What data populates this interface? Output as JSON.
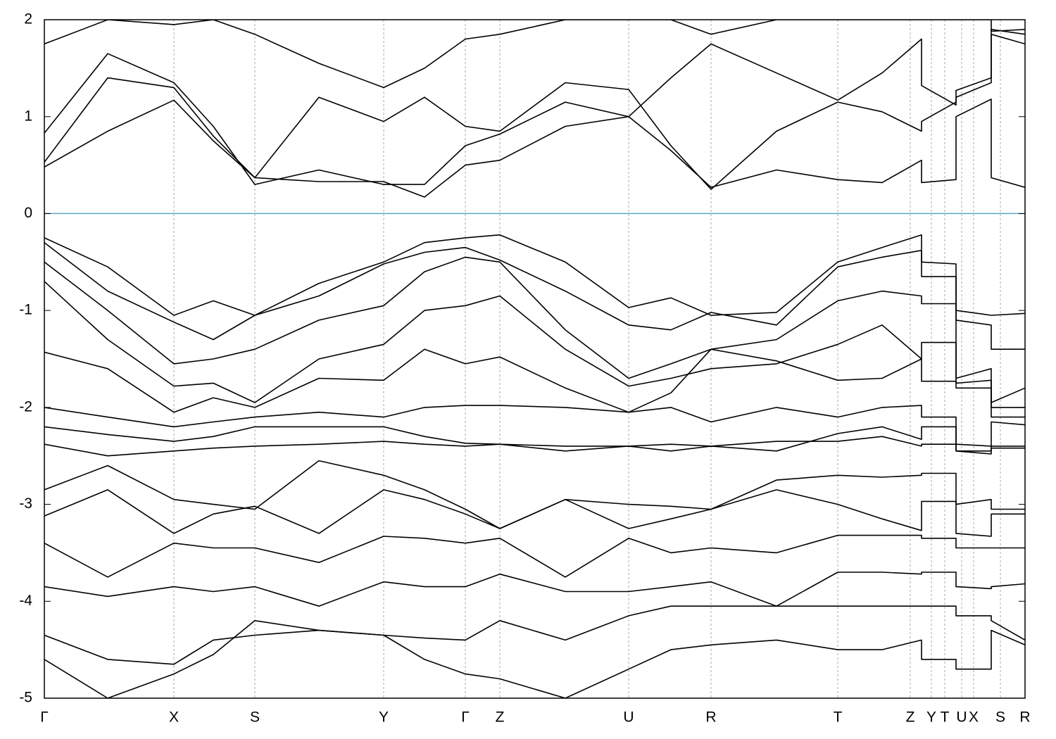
{
  "chart_data": {
    "type": "line",
    "ylim": [
      -5,
      2
    ],
    "yticks": [
      2,
      1,
      0,
      -1,
      -2,
      -3,
      -4,
      -5
    ],
    "xlim": [
      0,
      13.93
    ],
    "xticks": [
      {
        "value": 0,
        "label": "Γ"
      },
      {
        "value": 1.84,
        "label": "X"
      },
      {
        "value": 2.99,
        "label": "S"
      },
      {
        "value": 4.82,
        "label": "Y"
      },
      {
        "value": 5.98,
        "label": "Γ"
      },
      {
        "value": 6.47,
        "label": "Z"
      },
      {
        "value": 8.3,
        "label": "U"
      },
      {
        "value": 9.47,
        "label": "R"
      },
      {
        "value": 11.27,
        "label": "T"
      },
      {
        "value": 12.3,
        "label": "Z"
      },
      {
        "value": 12.6,
        "label": "Y"
      },
      {
        "value": 12.79,
        "label": "T"
      },
      {
        "value": 13.03,
        "label": "U"
      },
      {
        "value": 13.2,
        "label": "X"
      },
      {
        "value": 13.58,
        "label": "S"
      },
      {
        "value": 13.93,
        "label": "R"
      }
    ],
    "grid": true,
    "hline": {
      "value": 0,
      "color": "#5aa9c4"
    },
    "x": [
      0,
      0.9,
      1.84,
      2.4,
      2.99,
      3.9,
      4.82,
      5.4,
      5.98,
      6.47,
      7.4,
      8.3,
      8.9,
      9.47,
      10.4,
      11.27,
      11.9,
      12.46,
      12.46,
      12.95,
      12.95,
      13.45,
      13.45,
      13.93
    ],
    "series": [
      {
        "color": "#000000",
        "values": [
          0.48,
          0.85,
          1.17,
          0.75,
          0.37,
          0.33,
          0.33,
          0.17,
          0.5,
          0.55,
          0.9,
          1.0,
          0.65,
          0.27,
          0.45,
          0.35,
          0.32,
          0.55,
          0.32,
          0.35,
          1.0,
          1.18,
          0.37,
          0.27
        ]
      },
      {
        "color": "#000000",
        "values": [
          0.53,
          1.4,
          1.3,
          0.8,
          0.37,
          1.2,
          0.95,
          1.2,
          0.9,
          0.85,
          1.35,
          1.28,
          0.7,
          0.25,
          0.85,
          1.15,
          1.05,
          0.85,
          0.95,
          1.15,
          1.27,
          1.4,
          1.85,
          1.75
        ]
      },
      {
        "color": "#000000",
        "values": [
          0.83,
          1.65,
          1.35,
          0.9,
          0.3,
          0.45,
          0.3,
          0.3,
          0.7,
          0.82,
          1.15,
          1.0,
          1.4,
          1.75,
          1.45,
          1.17,
          1.45,
          1.8,
          1.32,
          1.12,
          1.2,
          1.35,
          1.9,
          1.85
        ]
      },
      {
        "color": "#000000",
        "values": [
          1.75,
          2.0,
          1.95,
          2.0,
          1.85,
          1.55,
          1.3,
          1.5,
          1.8,
          1.85,
          2.0,
          2.0,
          2.0,
          1.85,
          2.0,
          2.0,
          2.0,
          2.0,
          2.0,
          2.0,
          2.0,
          2.0,
          1.88,
          1.9
        ]
      },
      {
        "color": "#000000",
        "values": [
          -0.25,
          -0.55,
          -1.05,
          -0.9,
          -1.05,
          -0.72,
          -0.5,
          -0.3,
          -0.25,
          -0.22,
          -0.5,
          -0.97,
          -0.87,
          -1.05,
          -1.02,
          -0.5,
          -0.35,
          -0.22,
          -0.5,
          -0.52,
          -1.0,
          -1.05,
          -1.05,
          -1.03
        ]
      },
      {
        "color": "#000000",
        "values": [
          -0.3,
          -0.8,
          -1.12,
          -1.3,
          -1.05,
          -0.85,
          -0.52,
          -0.4,
          -0.35,
          -0.48,
          -0.8,
          -1.15,
          -1.2,
          -1.02,
          -1.15,
          -0.55,
          -0.45,
          -0.38,
          -0.65,
          -0.65,
          -1.1,
          -1.15,
          -1.4,
          -1.4
        ]
      },
      {
        "color": "#000000",
        "values": [
          -0.5,
          -1.0,
          -1.55,
          -1.5,
          -1.4,
          -1.1,
          -0.95,
          -0.6,
          -0.45,
          -0.5,
          -1.2,
          -1.7,
          -1.55,
          -1.4,
          -1.3,
          -0.9,
          -0.8,
          -0.85,
          -0.93,
          -0.93,
          -1.7,
          -1.6,
          -1.95,
          -1.8
        ]
      },
      {
        "color": "#000000",
        "values": [
          -0.7,
          -1.3,
          -1.78,
          -1.75,
          -1.95,
          -1.5,
          -1.35,
          -1.0,
          -0.95,
          -0.85,
          -1.4,
          -1.78,
          -1.7,
          -1.6,
          -1.55,
          -1.35,
          -1.15,
          -1.5,
          -1.33,
          -1.33,
          -1.75,
          -1.72,
          -2.0,
          -2.0
        ]
      },
      {
        "color": "#000000",
        "values": [
          -1.43,
          -1.6,
          -2.05,
          -1.9,
          -2.0,
          -1.7,
          -1.72,
          -1.4,
          -1.55,
          -1.48,
          -1.8,
          -2.05,
          -1.85,
          -1.4,
          -1.52,
          -1.72,
          -1.7,
          -1.5,
          -1.73,
          -1.73,
          -1.8,
          -1.8,
          -2.1,
          -2.1
        ]
      },
      {
        "color": "#000000",
        "values": [
          -2.0,
          -2.1,
          -2.2,
          -2.15,
          -2.1,
          -2.05,
          -2.1,
          -2.0,
          -1.98,
          -1.98,
          -2.0,
          -2.05,
          -2.0,
          -2.15,
          -2.0,
          -2.1,
          -2.0,
          -1.98,
          -2.1,
          -2.1,
          -2.45,
          -2.45,
          -2.15,
          -2.18
        ]
      },
      {
        "color": "#000000",
        "values": [
          -2.2,
          -2.28,
          -2.35,
          -2.3,
          -2.2,
          -2.2,
          -2.2,
          -2.3,
          -2.37,
          -2.38,
          -2.45,
          -2.4,
          -2.45,
          -2.4,
          -2.45,
          -2.27,
          -2.2,
          -2.33,
          -2.2,
          -2.2,
          -2.38,
          -2.4,
          -2.4,
          -2.4
        ]
      },
      {
        "color": "#000000",
        "values": [
          -2.38,
          -2.5,
          -2.45,
          -2.42,
          -2.4,
          -2.38,
          -2.35,
          -2.38,
          -2.4,
          -2.38,
          -2.4,
          -2.4,
          -2.38,
          -2.4,
          -2.35,
          -2.35,
          -2.3,
          -2.4,
          -2.38,
          -2.38,
          -2.45,
          -2.48,
          -2.42,
          -2.42
        ]
      },
      {
        "color": "#000000",
        "values": [
          -2.85,
          -2.6,
          -2.95,
          -3.0,
          -3.05,
          -2.55,
          -2.7,
          -2.85,
          -3.05,
          -3.25,
          -2.95,
          -3.0,
          -3.02,
          -3.05,
          -2.75,
          -2.7,
          -2.72,
          -2.7,
          -2.68,
          -2.68,
          -3.0,
          -2.95,
          -3.05,
          -3.05
        ]
      },
      {
        "color": "#000000",
        "values": [
          -3.12,
          -2.85,
          -3.3,
          -3.1,
          -3.02,
          -3.3,
          -2.85,
          -2.95,
          -3.1,
          -3.25,
          -2.95,
          -3.25,
          -3.15,
          -3.05,
          -2.85,
          -3.0,
          -3.15,
          -3.27,
          -2.97,
          -2.97,
          -3.3,
          -3.33,
          -3.1,
          -3.1
        ]
      },
      {
        "color": "#000000",
        "values": [
          -3.4,
          -3.75,
          -3.4,
          -3.45,
          -3.45,
          -3.6,
          -3.33,
          -3.35,
          -3.4,
          -3.35,
          -3.75,
          -3.35,
          -3.5,
          -3.45,
          -3.5,
          -3.32,
          -3.32,
          -3.32,
          -3.35,
          -3.35,
          -3.45,
          -3.45,
          -3.45,
          -3.45
        ]
      },
      {
        "color": "#000000",
        "values": [
          -3.85,
          -3.95,
          -3.85,
          -3.9,
          -3.85,
          -4.05,
          -3.8,
          -3.85,
          -3.85,
          -3.72,
          -3.9,
          -3.9,
          -3.85,
          -3.8,
          -4.05,
          -3.7,
          -3.7,
          -3.72,
          -3.7,
          -3.7,
          -3.85,
          -3.87,
          -3.85,
          -3.82
        ]
      },
      {
        "color": "#000000",
        "values": [
          -4.35,
          -4.6,
          -4.65,
          -4.4,
          -4.35,
          -4.3,
          -4.35,
          -4.38,
          -4.4,
          -4.2,
          -4.4,
          -4.15,
          -4.05,
          -4.05,
          -4.05,
          -4.05,
          -4.05,
          -4.05,
          -4.05,
          -4.05,
          -4.15,
          -4.15,
          -4.2,
          -4.4
        ]
      },
      {
        "color": "#000000",
        "values": [
          -4.6,
          -5.0,
          -4.75,
          -4.55,
          -4.2,
          -4.3,
          -4.35,
          -4.6,
          -4.75,
          -4.8,
          -5.0,
          -4.7,
          -4.5,
          -4.45,
          -4.4,
          -4.5,
          -4.5,
          -4.4,
          -4.6,
          -4.6,
          -4.7,
          -4.7,
          -4.3,
          -4.45
        ]
      }
    ]
  }
}
